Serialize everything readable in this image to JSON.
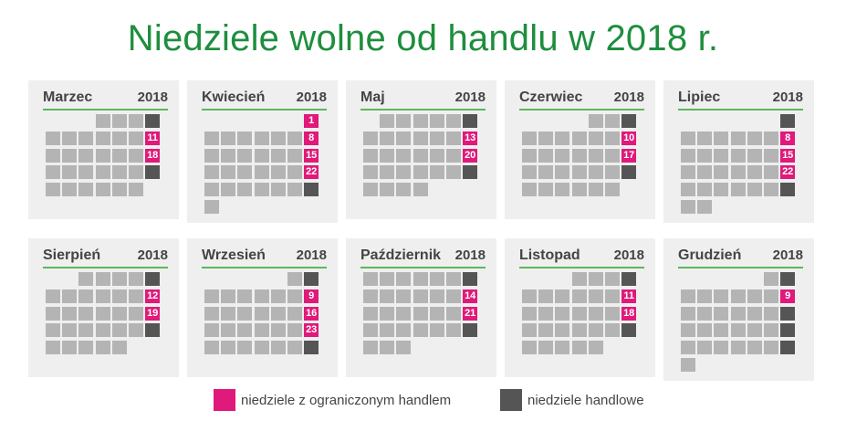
{
  "title": "Niedziele wolne od handlu w 2018 r.",
  "colors": {
    "title": "#1e8e3e",
    "restricted": "#e0197a",
    "trading": "#555555",
    "day": "#b4b4b4",
    "card": "#efefef",
    "underline": "#5cb85c"
  },
  "months": [
    {
      "name": "Marzec",
      "year": "2018",
      "lead": 3,
      "days": 31,
      "pink": [
        11,
        18
      ],
      "dark": [
        4,
        25
      ]
    },
    {
      "name": "Kwiecień",
      "year": "2018",
      "lead": 6,
      "days": 30,
      "pink": [
        1,
        8,
        15,
        22
      ],
      "dark": [
        29
      ]
    },
    {
      "name": "Maj",
      "year": "2018",
      "lead": 1,
      "days": 31,
      "pink": [
        13,
        20
      ],
      "dark": [
        6,
        27
      ]
    },
    {
      "name": "Czerwiec",
      "year": "2018",
      "lead": 4,
      "days": 30,
      "pink": [
        10,
        17
      ],
      "dark": [
        3,
        24
      ]
    },
    {
      "name": "Lipiec",
      "year": "2018",
      "lead": 6,
      "days": 31,
      "pink": [
        8,
        15,
        22
      ],
      "dark": [
        1,
        29
      ]
    },
    {
      "name": "Sierpień",
      "year": "2018",
      "lead": 2,
      "days": 31,
      "pink": [
        12,
        19
      ],
      "dark": [
        5,
        26
      ]
    },
    {
      "name": "Wrzesień",
      "year": "2018",
      "lead": 5,
      "days": 30,
      "pink": [
        9,
        16,
        23
      ],
      "dark": [
        2,
        30
      ]
    },
    {
      "name": "Październik",
      "year": "2018",
      "lead": 0,
      "days": 31,
      "pink": [
        14,
        21
      ],
      "dark": [
        7,
        28
      ]
    },
    {
      "name": "Listopad",
      "year": "2018",
      "lead": 3,
      "days": 30,
      "pink": [
        11,
        18
      ],
      "dark": [
        4,
        25
      ]
    },
    {
      "name": "Grudzień",
      "year": "2018",
      "lead": 5,
      "days": 31,
      "pink": [
        9
      ],
      "dark": [
        2,
        16,
        23,
        30
      ]
    }
  ],
  "legend": {
    "restricted": "niedziele z ograniczonym handlem",
    "trading": "niedziele handlowe"
  }
}
